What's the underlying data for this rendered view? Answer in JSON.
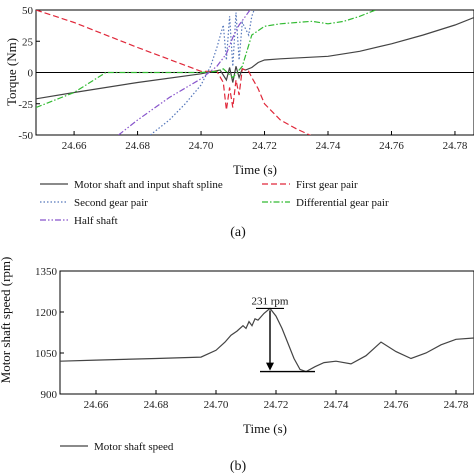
{
  "chart_data": [
    {
      "type": "line",
      "panel_label": "(a)",
      "xlabel": "Time (s)",
      "ylabel": "Torque (Nm)",
      "xlim": [
        24.648,
        24.786
      ],
      "ylim": [
        -50,
        50
      ],
      "xticks": [
        24.66,
        24.68,
        24.7,
        24.72,
        24.74,
        24.76,
        24.78
      ],
      "xtick_labels": [
        "24.66",
        "24.68",
        "24.70",
        "24.72",
        "24.74",
        "24.76",
        "24.78"
      ],
      "yticks": [
        -50,
        -25,
        0,
        25,
        50
      ],
      "ytick_labels": [
        "-50",
        "-25",
        "0",
        "25",
        "50"
      ],
      "zero_line": true,
      "legend_position": "below",
      "series": [
        {
          "name": "Motor shaft and input shaft spline",
          "color": "#444444",
          "dash": "solid",
          "x": [
            24.648,
            24.66,
            24.68,
            24.7,
            24.706,
            24.708,
            24.709,
            24.71,
            24.711,
            24.712,
            24.713,
            24.714,
            24.716,
            24.718,
            24.72,
            24.725,
            24.74,
            24.75,
            24.76,
            24.77,
            24.78,
            24.786
          ],
          "y": [
            -21,
            -16,
            -8,
            -1,
            2,
            -6,
            4,
            -8,
            5,
            -4,
            3,
            2,
            4,
            8,
            10,
            11,
            13,
            17,
            23,
            30,
            38,
            44
          ]
        },
        {
          "name": "First gear pair",
          "color": "#e0283a",
          "dash": "dashed",
          "x": [
            24.648,
            24.66,
            24.68,
            24.7,
            24.705,
            24.707,
            24.708,
            24.709,
            24.71,
            24.711,
            24.712,
            24.713,
            24.715,
            24.716,
            24.718,
            24.72,
            24.725,
            24.73,
            24.736
          ],
          "y": [
            50,
            40,
            20,
            1,
            1,
            -8,
            -30,
            -12,
            -28,
            -6,
            -18,
            3,
            1,
            -4,
            -13,
            -25,
            -38,
            -45,
            -52
          ]
        },
        {
          "name": "Second gear pair",
          "color": "#5577bb",
          "dash": "dotted",
          "x": [
            24.684,
            24.69,
            24.695,
            24.7,
            24.703,
            24.705,
            24.707,
            24.708,
            24.709,
            24.71,
            24.711,
            24.712,
            24.713,
            24.715,
            24.716,
            24.717
          ],
          "y": [
            -50,
            -38,
            -25,
            -10,
            5,
            20,
            38,
            10,
            45,
            5,
            48,
            10,
            40,
            30,
            45,
            52
          ]
        },
        {
          "name": "Differential gear pair",
          "color": "#33bb33",
          "dash": "dashdot",
          "x": [
            24.648,
            24.66,
            24.67,
            24.69,
            24.7,
            24.705,
            24.707,
            24.71,
            24.713,
            24.716,
            24.72,
            24.725,
            24.73,
            24.735,
            24.74,
            24.745,
            24.75,
            24.755
          ],
          "y": [
            -28,
            -16,
            0,
            0,
            0,
            1,
            3,
            -4,
            5,
            30,
            37,
            39,
            40,
            41,
            39,
            41,
            45,
            50
          ]
        },
        {
          "name": "Half shaft",
          "color": "#8855cc",
          "dash": "dashdotdot",
          "x": [
            24.674,
            24.68,
            24.69,
            24.7,
            24.705,
            24.708,
            24.71,
            24.712,
            24.714,
            24.716
          ],
          "y": [
            -50,
            -38,
            -20,
            -5,
            5,
            15,
            28,
            38,
            45,
            52
          ]
        }
      ]
    },
    {
      "type": "line",
      "panel_label": "(b)",
      "xlabel": "Time (s)",
      "ylabel": "Motor shaft speed (rpm)",
      "xlim": [
        24.648,
        24.786
      ],
      "ylim": [
        900,
        1350
      ],
      "xticks": [
        24.66,
        24.68,
        24.7,
        24.72,
        24.74,
        24.76,
        24.78
      ],
      "xtick_labels": [
        "24.66",
        "24.68",
        "24.70",
        "24.72",
        "24.74",
        "24.76",
        "24.78"
      ],
      "yticks": [
        900,
        1050,
        1200,
        1350
      ],
      "ytick_labels": [
        "900",
        "1050",
        "1200",
        "1350"
      ],
      "legend_position": "below",
      "annotation": {
        "text": "231 rpm",
        "x": 24.718,
        "y_top": 1213,
        "y_bottom": 982
      },
      "series": [
        {
          "name": "Motor shaft speed",
          "color": "#444444",
          "dash": "solid",
          "x": [
            24.648,
            24.66,
            24.68,
            24.695,
            24.7,
            24.703,
            24.705,
            24.707,
            24.709,
            24.71,
            24.711,
            24.712,
            24.713,
            24.714,
            24.716,
            24.718,
            24.72,
            24.722,
            24.724,
            24.726,
            24.728,
            24.73,
            24.733,
            24.736,
            24.74,
            24.745,
            24.75,
            24.755,
            24.76,
            24.765,
            24.77,
            24.775,
            24.78,
            24.786
          ],
          "y": [
            1020,
            1024,
            1030,
            1035,
            1060,
            1090,
            1115,
            1130,
            1150,
            1140,
            1165,
            1150,
            1175,
            1170,
            1195,
            1213,
            1185,
            1140,
            1085,
            1030,
            990,
            982,
            1000,
            1015,
            1020,
            1010,
            1040,
            1090,
            1055,
            1030,
            1050,
            1080,
            1100,
            1105
          ]
        }
      ]
    }
  ]
}
